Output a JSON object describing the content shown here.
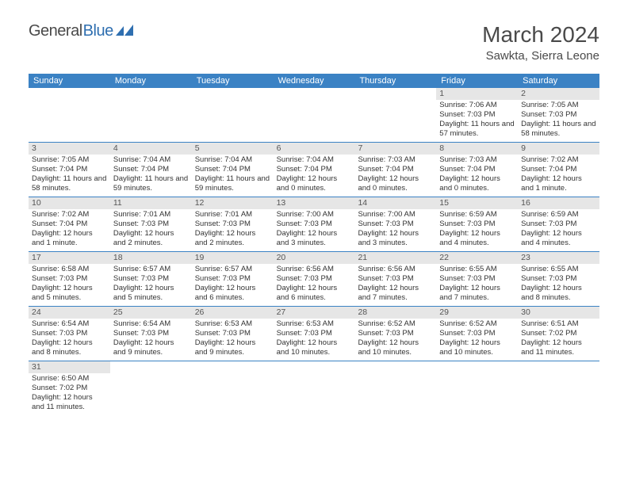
{
  "logo": {
    "part1": "General",
    "part2": "Blue"
  },
  "title": "March 2024",
  "location": "Sawkta, Sierra Leone",
  "colors": {
    "header_bg": "#3b82c4",
    "header_text": "#ffffff",
    "daynum_bg": "#e6e6e6",
    "border": "#3b82c4",
    "text": "#333333",
    "logo_gray": "#4a4a4a",
    "logo_blue": "#2f6fb0"
  },
  "day_headers": [
    "Sunday",
    "Monday",
    "Tuesday",
    "Wednesday",
    "Thursday",
    "Friday",
    "Saturday"
  ],
  "weeks": [
    [
      null,
      null,
      null,
      null,
      null,
      {
        "n": "1",
        "sr": "Sunrise: 7:06 AM",
        "ss": "Sunset: 7:03 PM",
        "dl": "Daylight: 11 hours and 57 minutes."
      },
      {
        "n": "2",
        "sr": "Sunrise: 7:05 AM",
        "ss": "Sunset: 7:03 PM",
        "dl": "Daylight: 11 hours and 58 minutes."
      }
    ],
    [
      {
        "n": "3",
        "sr": "Sunrise: 7:05 AM",
        "ss": "Sunset: 7:04 PM",
        "dl": "Daylight: 11 hours and 58 minutes."
      },
      {
        "n": "4",
        "sr": "Sunrise: 7:04 AM",
        "ss": "Sunset: 7:04 PM",
        "dl": "Daylight: 11 hours and 59 minutes."
      },
      {
        "n": "5",
        "sr": "Sunrise: 7:04 AM",
        "ss": "Sunset: 7:04 PM",
        "dl": "Daylight: 11 hours and 59 minutes."
      },
      {
        "n": "6",
        "sr": "Sunrise: 7:04 AM",
        "ss": "Sunset: 7:04 PM",
        "dl": "Daylight: 12 hours and 0 minutes."
      },
      {
        "n": "7",
        "sr": "Sunrise: 7:03 AM",
        "ss": "Sunset: 7:04 PM",
        "dl": "Daylight: 12 hours and 0 minutes."
      },
      {
        "n": "8",
        "sr": "Sunrise: 7:03 AM",
        "ss": "Sunset: 7:04 PM",
        "dl": "Daylight: 12 hours and 0 minutes."
      },
      {
        "n": "9",
        "sr": "Sunrise: 7:02 AM",
        "ss": "Sunset: 7:04 PM",
        "dl": "Daylight: 12 hours and 1 minute."
      }
    ],
    [
      {
        "n": "10",
        "sr": "Sunrise: 7:02 AM",
        "ss": "Sunset: 7:04 PM",
        "dl": "Daylight: 12 hours and 1 minute."
      },
      {
        "n": "11",
        "sr": "Sunrise: 7:01 AM",
        "ss": "Sunset: 7:03 PM",
        "dl": "Daylight: 12 hours and 2 minutes."
      },
      {
        "n": "12",
        "sr": "Sunrise: 7:01 AM",
        "ss": "Sunset: 7:03 PM",
        "dl": "Daylight: 12 hours and 2 minutes."
      },
      {
        "n": "13",
        "sr": "Sunrise: 7:00 AM",
        "ss": "Sunset: 7:03 PM",
        "dl": "Daylight: 12 hours and 3 minutes."
      },
      {
        "n": "14",
        "sr": "Sunrise: 7:00 AM",
        "ss": "Sunset: 7:03 PM",
        "dl": "Daylight: 12 hours and 3 minutes."
      },
      {
        "n": "15",
        "sr": "Sunrise: 6:59 AM",
        "ss": "Sunset: 7:03 PM",
        "dl": "Daylight: 12 hours and 4 minutes."
      },
      {
        "n": "16",
        "sr": "Sunrise: 6:59 AM",
        "ss": "Sunset: 7:03 PM",
        "dl": "Daylight: 12 hours and 4 minutes."
      }
    ],
    [
      {
        "n": "17",
        "sr": "Sunrise: 6:58 AM",
        "ss": "Sunset: 7:03 PM",
        "dl": "Daylight: 12 hours and 5 minutes."
      },
      {
        "n": "18",
        "sr": "Sunrise: 6:57 AM",
        "ss": "Sunset: 7:03 PM",
        "dl": "Daylight: 12 hours and 5 minutes."
      },
      {
        "n": "19",
        "sr": "Sunrise: 6:57 AM",
        "ss": "Sunset: 7:03 PM",
        "dl": "Daylight: 12 hours and 6 minutes."
      },
      {
        "n": "20",
        "sr": "Sunrise: 6:56 AM",
        "ss": "Sunset: 7:03 PM",
        "dl": "Daylight: 12 hours and 6 minutes."
      },
      {
        "n": "21",
        "sr": "Sunrise: 6:56 AM",
        "ss": "Sunset: 7:03 PM",
        "dl": "Daylight: 12 hours and 7 minutes."
      },
      {
        "n": "22",
        "sr": "Sunrise: 6:55 AM",
        "ss": "Sunset: 7:03 PM",
        "dl": "Daylight: 12 hours and 7 minutes."
      },
      {
        "n": "23",
        "sr": "Sunrise: 6:55 AM",
        "ss": "Sunset: 7:03 PM",
        "dl": "Daylight: 12 hours and 8 minutes."
      }
    ],
    [
      {
        "n": "24",
        "sr": "Sunrise: 6:54 AM",
        "ss": "Sunset: 7:03 PM",
        "dl": "Daylight: 12 hours and 8 minutes."
      },
      {
        "n": "25",
        "sr": "Sunrise: 6:54 AM",
        "ss": "Sunset: 7:03 PM",
        "dl": "Daylight: 12 hours and 9 minutes."
      },
      {
        "n": "26",
        "sr": "Sunrise: 6:53 AM",
        "ss": "Sunset: 7:03 PM",
        "dl": "Daylight: 12 hours and 9 minutes."
      },
      {
        "n": "27",
        "sr": "Sunrise: 6:53 AM",
        "ss": "Sunset: 7:03 PM",
        "dl": "Daylight: 12 hours and 10 minutes."
      },
      {
        "n": "28",
        "sr": "Sunrise: 6:52 AM",
        "ss": "Sunset: 7:03 PM",
        "dl": "Daylight: 12 hours and 10 minutes."
      },
      {
        "n": "29",
        "sr": "Sunrise: 6:52 AM",
        "ss": "Sunset: 7:03 PM",
        "dl": "Daylight: 12 hours and 10 minutes."
      },
      {
        "n": "30",
        "sr": "Sunrise: 6:51 AM",
        "ss": "Sunset: 7:02 PM",
        "dl": "Daylight: 12 hours and 11 minutes."
      }
    ],
    [
      {
        "n": "31",
        "sr": "Sunrise: 6:50 AM",
        "ss": "Sunset: 7:02 PM",
        "dl": "Daylight: 12 hours and 11 minutes."
      },
      null,
      null,
      null,
      null,
      null,
      null
    ]
  ]
}
